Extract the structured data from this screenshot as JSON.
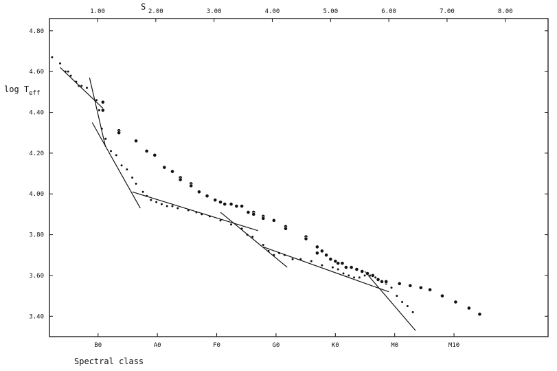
{
  "chart_data": {
    "type": "scatter",
    "title": "",
    "xlabel": "Spectral class",
    "ylabel": "log T",
    "ylabel_sub": "eff",
    "top_xlabel": "S",
    "ylim": [
      3.3,
      4.86
    ],
    "xlim": [
      0.0,
      9.33
    ],
    "yticks": [
      3.4,
      3.6,
      3.8,
      4.0,
      4.2,
      4.4,
      4.6,
      4.8
    ],
    "ytick_labels": [
      "3.40",
      "3.60",
      "3.80",
      "4.00",
      "4.20",
      "4.40",
      "4.60",
      "4.80"
    ],
    "xticks_bottom": [
      {
        "label": "B0",
        "x": 0.91
      },
      {
        "label": "A0",
        "x": 2.02
      },
      {
        "label": "F0",
        "x": 3.13
      },
      {
        "label": "G0",
        "x": 4.24
      },
      {
        "label": "K0",
        "x": 5.35
      },
      {
        "label": "M0",
        "x": 6.46
      },
      {
        "label": "M10",
        "x": 7.57
      }
    ],
    "xticks_top": [
      {
        "label": "1.00",
        "x": 0.9
      },
      {
        "label": "2.00",
        "x": 1.99
      },
      {
        "label": "3.00",
        "x": 3.08
      },
      {
        "label": "4.00",
        "x": 4.17
      },
      {
        "label": "5.00",
        "x": 5.26
      },
      {
        "label": "6.00",
        "x": 6.35
      },
      {
        "label": "7.00",
        "x": 7.44
      },
      {
        "label": "8.00",
        "x": 8.53
      }
    ],
    "grid": false,
    "series": [
      {
        "marker": "dot",
        "points": [
          [
            0.05,
            4.67
          ],
          [
            0.2,
            4.64
          ],
          [
            0.3,
            4.6
          ],
          [
            0.35,
            4.6
          ],
          [
            0.4,
            4.58
          ],
          [
            0.5,
            4.55
          ],
          [
            0.55,
            4.53
          ],
          [
            0.6,
            4.53
          ],
          [
            0.7,
            4.52
          ],
          [
            0.88,
            4.46
          ],
          [
            0.93,
            4.41
          ],
          [
            0.98,
            4.32
          ],
          [
            1.05,
            4.27
          ],
          [
            1.15,
            4.21
          ],
          [
            1.25,
            4.19
          ],
          [
            1.35,
            4.14
          ],
          [
            1.45,
            4.12
          ],
          [
            1.55,
            4.08
          ],
          [
            1.62,
            4.05
          ],
          [
            1.75,
            4.01
          ],
          [
            1.82,
            3.99
          ],
          [
            1.9,
            3.97
          ],
          [
            2.0,
            3.96
          ],
          [
            2.1,
            3.95
          ],
          [
            2.2,
            3.94
          ],
          [
            2.3,
            3.94
          ],
          [
            2.4,
            3.93
          ],
          [
            2.6,
            3.92
          ],
          [
            2.75,
            3.91
          ],
          [
            2.85,
            3.9
          ],
          [
            3.0,
            3.89
          ],
          [
            3.2,
            3.87
          ],
          [
            3.4,
            3.85
          ],
          [
            3.6,
            3.83
          ],
          [
            3.7,
            3.8
          ],
          [
            3.8,
            3.79
          ],
          [
            4.0,
            3.75
          ],
          [
            4.1,
            3.72
          ],
          [
            4.2,
            3.7
          ],
          [
            4.3,
            3.71
          ],
          [
            4.4,
            3.7
          ],
          [
            4.55,
            3.68
          ],
          [
            4.7,
            3.68
          ],
          [
            4.9,
            3.67
          ],
          [
            5.1,
            3.65
          ],
          [
            5.3,
            3.64
          ],
          [
            5.4,
            3.63
          ],
          [
            5.5,
            3.61
          ],
          [
            5.6,
            3.6
          ],
          [
            5.7,
            3.59
          ],
          [
            5.8,
            3.59
          ],
          [
            5.9,
            3.6
          ],
          [
            6.0,
            3.6
          ],
          [
            6.1,
            3.59
          ],
          [
            6.3,
            3.56
          ],
          [
            6.4,
            3.54
          ],
          [
            6.5,
            3.5
          ],
          [
            6.6,
            3.47
          ],
          [
            6.7,
            3.45
          ],
          [
            6.8,
            3.42
          ]
        ]
      },
      {
        "marker": "circle",
        "points": [
          [
            1.0,
            4.45
          ],
          [
            1.0,
            4.41
          ],
          [
            1.3,
            4.31
          ],
          [
            1.3,
            4.3
          ],
          [
            1.62,
            4.26
          ],
          [
            1.82,
            4.21
          ],
          [
            1.97,
            4.19
          ],
          [
            2.15,
            4.13
          ],
          [
            2.3,
            4.11
          ],
          [
            2.45,
            4.08
          ],
          [
            2.45,
            4.07
          ],
          [
            2.65,
            4.05
          ],
          [
            2.65,
            4.04
          ],
          [
            2.8,
            4.01
          ],
          [
            2.95,
            3.99
          ],
          [
            3.1,
            3.97
          ],
          [
            3.2,
            3.96
          ],
          [
            3.28,
            3.95
          ],
          [
            3.4,
            3.95
          ],
          [
            3.5,
            3.94
          ],
          [
            3.6,
            3.94
          ],
          [
            3.72,
            3.91
          ],
          [
            3.82,
            3.91
          ],
          [
            3.82,
            3.9
          ],
          [
            4.0,
            3.89
          ],
          [
            4.0,
            3.88
          ],
          [
            4.2,
            3.87
          ],
          [
            4.42,
            3.84
          ],
          [
            4.42,
            3.83
          ],
          [
            4.8,
            3.79
          ],
          [
            4.8,
            3.78
          ],
          [
            5.01,
            3.74
          ],
          [
            5.01,
            3.71
          ],
          [
            5.1,
            3.72
          ],
          [
            5.18,
            3.7
          ],
          [
            5.26,
            3.68
          ],
          [
            5.35,
            3.67
          ],
          [
            5.4,
            3.66
          ],
          [
            5.48,
            3.66
          ],
          [
            5.55,
            3.64
          ],
          [
            5.65,
            3.64
          ],
          [
            5.75,
            3.63
          ],
          [
            5.85,
            3.62
          ],
          [
            5.95,
            3.61
          ],
          [
            6.05,
            3.6
          ],
          [
            6.15,
            3.58
          ],
          [
            6.22,
            3.57
          ],
          [
            6.3,
            3.57
          ],
          [
            6.55,
            3.56
          ],
          [
            6.75,
            3.55
          ],
          [
            6.95,
            3.54
          ],
          [
            7.12,
            3.53
          ],
          [
            7.35,
            3.5
          ],
          [
            7.6,
            3.47
          ],
          [
            7.85,
            3.44
          ],
          [
            8.05,
            3.41
          ]
        ]
      }
    ],
    "fit_lines": [
      [
        [
          0.2,
          4.62
        ],
        [
          1.0,
          4.42
        ]
      ],
      [
        [
          0.75,
          4.57
        ],
        [
          1.05,
          4.23
        ]
      ],
      [
        [
          0.8,
          4.35
        ],
        [
          1.7,
          3.93
        ]
      ],
      [
        [
          1.55,
          4.01
        ],
        [
          3.9,
          3.82
        ]
      ],
      [
        [
          3.2,
          3.91
        ],
        [
          4.45,
          3.64
        ]
      ],
      [
        [
          4.0,
          3.74
        ],
        [
          6.35,
          3.52
        ]
      ],
      [
        [
          5.9,
          3.62
        ],
        [
          6.85,
          3.33
        ]
      ]
    ]
  }
}
